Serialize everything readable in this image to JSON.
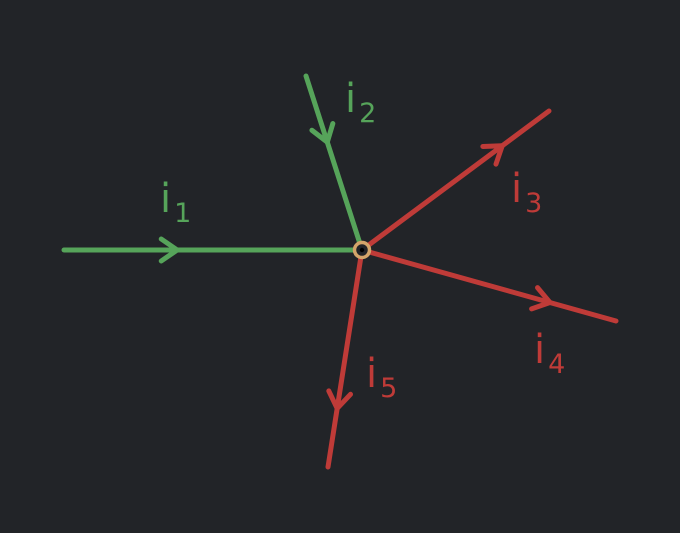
{
  "colors": {
    "background": "#222428",
    "incoming": "#56a45a",
    "outgoing": "#bf3b38",
    "node_stroke": "#d4a56a",
    "node_fill": "#222428"
  },
  "node": {
    "name": "junction-node"
  },
  "currents": [
    {
      "id": "i1",
      "letter": "i",
      "subscript": "1",
      "direction": "in"
    },
    {
      "id": "i2",
      "letter": "i",
      "subscript": "2",
      "direction": "in"
    },
    {
      "id": "i3",
      "letter": "i",
      "subscript": "3",
      "direction": "out"
    },
    {
      "id": "i4",
      "letter": "i",
      "subscript": "4",
      "direction": "out"
    },
    {
      "id": "i5",
      "letter": "i",
      "subscript": "5",
      "direction": "out"
    }
  ]
}
